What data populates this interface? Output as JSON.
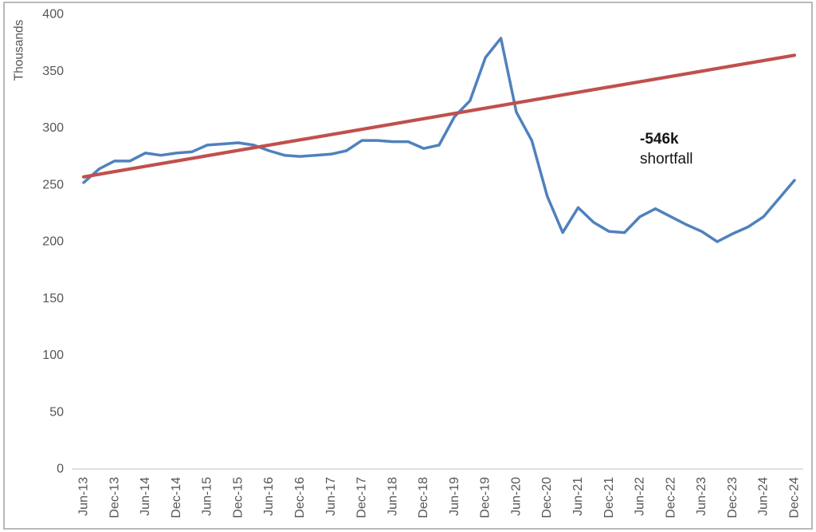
{
  "chart_data": {
    "type": "line",
    "title": "",
    "x": [
      "Jun-13",
      "Sep-13",
      "Dec-13",
      "Mar-14",
      "Jun-14",
      "Sep-14",
      "Dec-14",
      "Mar-15",
      "Jun-15",
      "Sep-15",
      "Dec-15",
      "Mar-16",
      "Jun-16",
      "Sep-16",
      "Dec-16",
      "Mar-17",
      "Jun-17",
      "Sep-17",
      "Dec-17",
      "Mar-18",
      "Jun-18",
      "Sep-18",
      "Dec-18",
      "Mar-19",
      "Jun-19",
      "Sep-19",
      "Dec-19",
      "Mar-20",
      "Jun-20",
      "Sep-20",
      "Dec-20",
      "Mar-21",
      "Jun-21",
      "Sep-21",
      "Dec-21",
      "Mar-22",
      "Jun-22",
      "Sep-22",
      "Dec-22",
      "Mar-23",
      "Jun-23",
      "Sep-23",
      "Dec-23",
      "Mar-24",
      "Jun-24",
      "Sep-24",
      "Dec-24"
    ],
    "x_shown_tick_labels": [
      "Jun-13",
      "Dec-13",
      "Jun-14",
      "Dec-14",
      "Jun-15",
      "Dec-15",
      "Jun-16",
      "Dec-16",
      "Jun-17",
      "Dec-17",
      "Jun-18",
      "Dec-18",
      "Jun-19",
      "Dec-19",
      "Jun-20",
      "Dec-20",
      "Jun-21",
      "Dec-21",
      "Jun-22",
      "Dec-22",
      "Jun-23",
      "Dec-23",
      "Jun-24",
      "Dec-24"
    ],
    "series": [
      {
        "name": "actual",
        "type": "line",
        "color": "#4F81BD",
        "stroke_width": 3.5,
        "values": [
          252,
          264,
          271,
          271,
          278,
          276,
          278,
          279,
          285,
          286,
          287,
          285,
          280,
          276,
          275,
          276,
          277,
          280,
          289,
          289,
          288,
          288,
          282,
          285,
          310,
          324,
          362,
          379,
          314,
          289,
          240,
          208,
          230,
          217,
          209,
          208,
          222,
          229,
          222,
          215,
          209,
          200,
          207,
          213,
          222,
          238,
          254
        ]
      },
      {
        "name": "trend",
        "type": "straight-line",
        "color": "#C0504D",
        "stroke_width": 4.2,
        "start_value": 257,
        "end_value": 364
      }
    ],
    "y_axis": {
      "label": "Thousands",
      "min": 0,
      "max": 400,
      "tick_step": 50,
      "ticks": [
        0,
        50,
        100,
        150,
        200,
        250,
        300,
        350,
        400
      ]
    },
    "annotation": {
      "line1": "-546k",
      "line2": "shortfall"
    },
    "layout": {
      "gridlines": false,
      "legend": "none",
      "x_labels_rotated_90": true,
      "axis_line_color": "#d6d6d6",
      "tick_text_color": "#565656"
    }
  }
}
